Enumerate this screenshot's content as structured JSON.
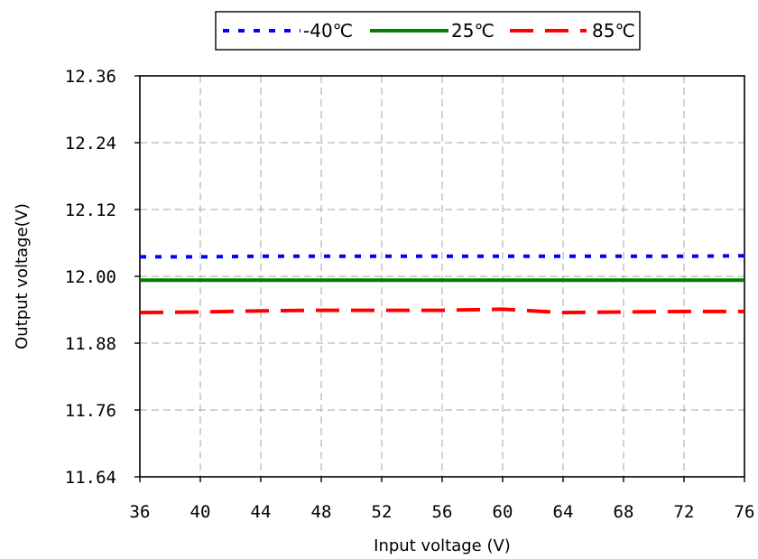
{
  "chart_data": {
    "type": "line",
    "xlabel": "Input voltage (V)",
    "ylabel": "Output voltage(V)",
    "xlim": [
      36,
      76
    ],
    "ylim": [
      11.64,
      12.36
    ],
    "x_ticks": [
      "36",
      "40",
      "44",
      "48",
      "52",
      "56",
      "60",
      "64",
      "68",
      "72",
      "76"
    ],
    "y_ticks": [
      "12.36",
      "12.24",
      "12.12",
      "12.00",
      "11.88",
      "11.76",
      "11.64"
    ],
    "grid": true,
    "legend_position": "top-center",
    "series": [
      {
        "name": "-40℃",
        "color": "#0000ff",
        "style": "dotted",
        "x": [
          36,
          40,
          44,
          48,
          52,
          56,
          60,
          64,
          68,
          72,
          76
        ],
        "y": [
          12.035,
          12.035,
          12.036,
          12.036,
          12.036,
          12.036,
          12.036,
          12.036,
          12.036,
          12.036,
          12.037
        ]
      },
      {
        "name": "25℃",
        "color": "#008000",
        "style": "solid",
        "x": [
          36,
          40,
          44,
          48,
          52,
          56,
          60,
          64,
          68,
          72,
          76
        ],
        "y": [
          11.993,
          11.993,
          11.993,
          11.993,
          11.993,
          11.993,
          11.993,
          11.993,
          11.993,
          11.993,
          11.993
        ]
      },
      {
        "name": "85℃",
        "color": "#ff0000",
        "style": "dashed",
        "x": [
          36,
          40,
          44,
          48,
          52,
          56,
          60,
          64,
          68,
          72,
          76
        ],
        "y": [
          11.935,
          11.936,
          11.938,
          11.939,
          11.939,
          11.939,
          11.941,
          11.935,
          11.936,
          11.937,
          11.937
        ]
      }
    ]
  }
}
